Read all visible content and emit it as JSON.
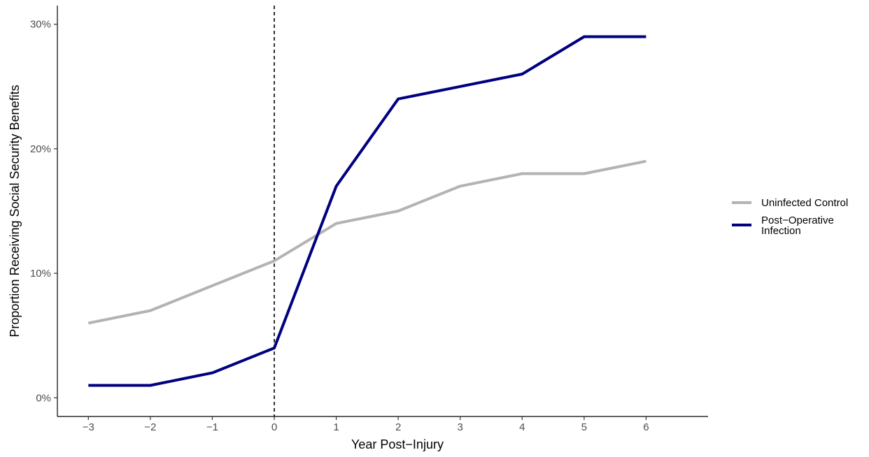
{
  "chart_data": {
    "type": "line",
    "title": "",
    "xlabel": "Year Post−Injury",
    "ylabel": "Proportion Receiving Social Security Benefits",
    "x": [
      -3,
      -2,
      -1,
      0,
      1,
      2,
      3,
      4,
      5,
      6
    ],
    "x_tick_labels": [
      "−3",
      "−2",
      "−1",
      "0",
      "1",
      "2",
      "3",
      "4",
      "5",
      "6"
    ],
    "xlim": [
      -3.5,
      7
    ],
    "ylim": [
      -1.5,
      31.5
    ],
    "y_ticks": [
      0,
      10,
      20,
      30
    ],
    "y_tick_labels": [
      "0%",
      "10%",
      "20%",
      "30%"
    ],
    "reference_line": {
      "x": 0,
      "style": "dashed"
    },
    "grid": false,
    "legend_position": "right",
    "series": [
      {
        "name": "Uninfected Control",
        "color": "#b3b3b3",
        "values": [
          6,
          7,
          9,
          11,
          14,
          15,
          17,
          18,
          18,
          19
        ]
      },
      {
        "name": "Post−Operative Infection",
        "name_lines": [
          "Post−Operative",
          "Infection"
        ],
        "color": "#000080",
        "values": [
          1,
          1,
          2,
          4,
          17,
          24,
          25,
          26,
          29,
          29
        ]
      }
    ]
  }
}
